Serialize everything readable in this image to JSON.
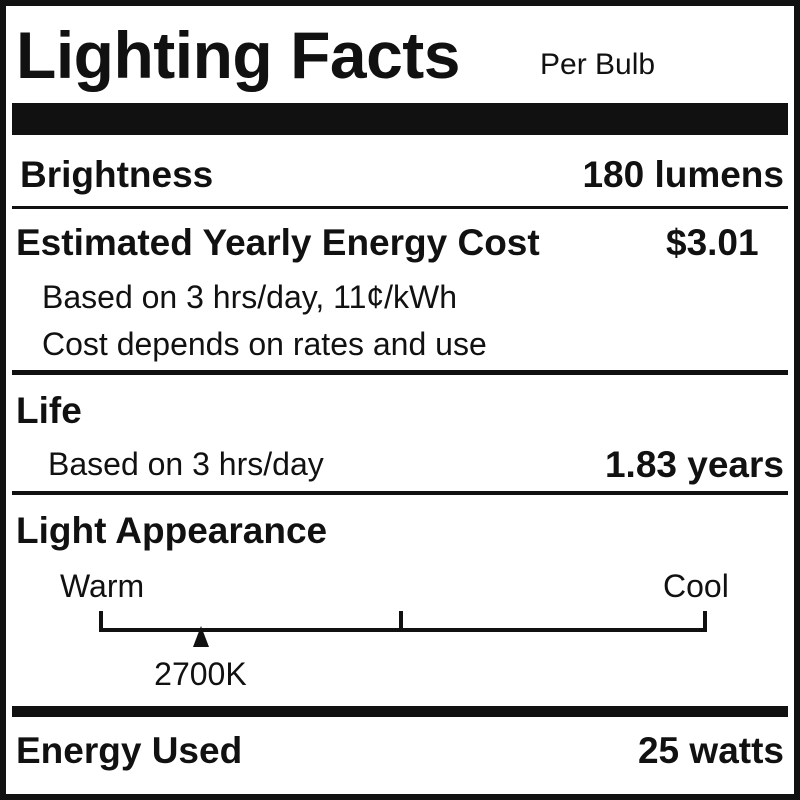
{
  "header": {
    "title": "Lighting Facts",
    "subtitle": "Per Bulb"
  },
  "brightness": {
    "label": "Brightness",
    "value": "180 lumens"
  },
  "energy_cost": {
    "label": "Estimated Yearly Energy Cost",
    "value": "$3.01",
    "note1": "Based on 3 hrs/day, 11¢/kWh",
    "note2": "Cost depends on rates and use"
  },
  "life": {
    "label": "Life",
    "note": "Based on 3 hrs/day",
    "value": "1.83 years"
  },
  "light_appearance": {
    "label": "Light Appearance",
    "warm_label": "Warm",
    "cool_label": "Cool",
    "marker_label": "2700K",
    "marker_position_fraction": 0.165
  },
  "energy_used": {
    "label": "Energy Used",
    "value": "25 watts"
  }
}
